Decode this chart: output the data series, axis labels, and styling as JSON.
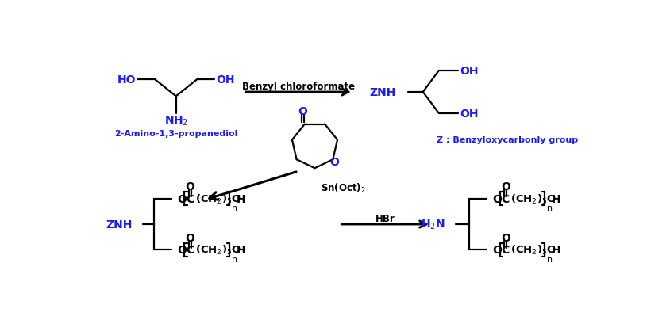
{
  "bg_color": "#ffffff",
  "text_color": "#000000",
  "bold_blue": "#1a1aff",
  "black": "#000000",
  "fig_width": 8.45,
  "fig_height": 4.1,
  "dpi": 100,
  "arrow1_label": "Benzyl chloroformate",
  "arrow3_label": "HBr",
  "snoct_label": "Sn(Oct)$_2$",
  "mol1_label": "2-Amino-1,3-propanediol",
  "mol2_desc": "Z : Benzyloxycarbonly group",
  "znh": "ZNH",
  "h2n": "H$_2$N",
  "ho": "HO",
  "oh": "OH",
  "nh2": "NH$_2$",
  "o_label": "O"
}
